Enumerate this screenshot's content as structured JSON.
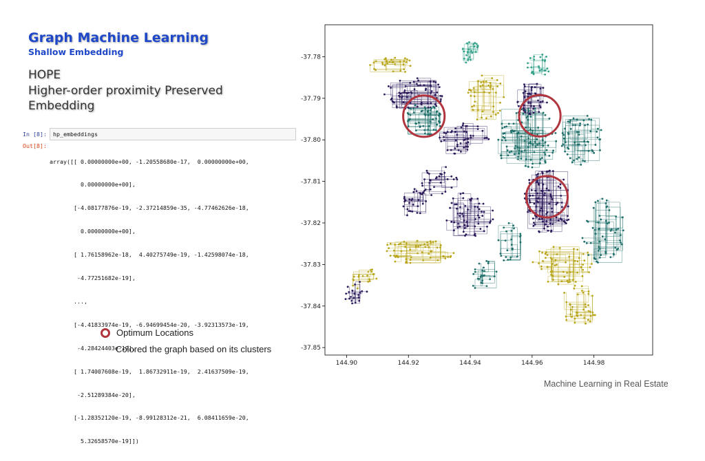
{
  "slide": {
    "title": "Graph Machine Learning",
    "subtitle": "Shallow Embedding",
    "heading_lines": [
      "HOPE",
      "Higher-order proximity Preserved",
      "Embedding"
    ],
    "footer": "Machine Learning in Real Estate"
  },
  "notebook": {
    "in_prompt": "In [8]:",
    "in_code": "hp_embeddings",
    "out_prompt": "Out[8]:",
    "out_lines": [
      "array([[ 0.00000000e+00, -1.20558680e-17,  0.00000000e+00,",
      "         0.00000000e+00],",
      "       [-4.08177876e-19, -2.37214859e-35, -4.77462626e-18,",
      "         0.00000000e+00],",
      "       [ 1.76158962e-18,  4.40275749e-19, -1.42598074e-18,",
      "        -4.77251682e-19],",
      "       ...,",
      "       [-4.41833974e-19, -6.94699454e-20, -3.92313573e-19,",
      "        -4.28424403e-19],",
      "       [ 1.74007608e-19,  1.86732911e-19,  2.41637509e-19,",
      "        -2.51289384e-20],",
      "       [-1.28352120e-19, -8.99128312e-21,  6.08411659e-20,",
      "         5.32658570e-19]])"
    ]
  },
  "legend": {
    "marker_color": "#b0353e",
    "label": "Optimum Locations",
    "caption": "Colored the graph based on its clusters"
  },
  "chart_data": {
    "type": "scatter",
    "title": "",
    "xlabel": "",
    "ylabel": "",
    "xlim": [
      144.893,
      144.999
    ],
    "ylim": [
      -37.8518,
      -37.7723
    ],
    "x_ticks": [
      144.9,
      144.92,
      144.94,
      144.96,
      144.98
    ],
    "x_tick_labels": [
      "144.90",
      "144.92",
      "144.94",
      "144.96",
      "144.98"
    ],
    "y_ticks": [
      -37.78,
      -37.79,
      -37.8,
      -37.81,
      -37.82,
      -37.83,
      -37.84,
      -37.85
    ],
    "y_tick_labels": [
      "-37.78",
      "-37.79",
      "-37.80",
      "-37.81",
      "-37.82",
      "-37.83",
      "-37.84",
      "-37.85"
    ],
    "grid": false,
    "cluster_colors": [
      "#2c1a5b",
      "#1f6f6a",
      "#b8a51a",
      "#35a38a"
    ],
    "highlight_color": "#b0353e",
    "highlights": [
      {
        "cx": 144.925,
        "cy": -37.7943,
        "r": 0.0067
      },
      {
        "cx": 144.9625,
        "cy": -37.7942,
        "r": 0.0067
      },
      {
        "cx": 144.9648,
        "cy": -37.8137,
        "r": 0.0067
      }
    ],
    "regions": [
      {
        "cluster": 0,
        "cx": 144.922,
        "cy": -37.789,
        "rx": 0.01,
        "ry": 0.004,
        "n": 70
      },
      {
        "cluster": 1,
        "cx": 144.925,
        "cy": -37.795,
        "rx": 0.006,
        "ry": 0.004,
        "n": 60
      },
      {
        "cluster": 0,
        "cx": 144.965,
        "cy": -37.815,
        "rx": 0.008,
        "ry": 0.008,
        "n": 110
      },
      {
        "cluster": 1,
        "cx": 144.958,
        "cy": -37.8,
        "rx": 0.01,
        "ry": 0.008,
        "n": 110
      },
      {
        "cluster": 1,
        "cx": 144.976,
        "cy": -37.8,
        "rx": 0.007,
        "ry": 0.006,
        "n": 60
      },
      {
        "cluster": 0,
        "cx": 144.96,
        "cy": -37.79,
        "rx": 0.005,
        "ry": 0.004,
        "n": 45
      },
      {
        "cluster": 2,
        "cx": 144.945,
        "cy": -37.79,
        "rx": 0.006,
        "ry": 0.006,
        "n": 45
      },
      {
        "cluster": 0,
        "cx": 144.938,
        "cy": -37.8,
        "rx": 0.008,
        "ry": 0.004,
        "n": 50
      },
      {
        "cluster": 0,
        "cx": 144.94,
        "cy": -37.818,
        "rx": 0.008,
        "ry": 0.006,
        "n": 60
      },
      {
        "cluster": 1,
        "cx": 144.983,
        "cy": -37.822,
        "rx": 0.007,
        "ry": 0.008,
        "n": 60
      },
      {
        "cluster": 2,
        "cx": 144.97,
        "cy": -37.83,
        "rx": 0.01,
        "ry": 0.005,
        "n": 60
      },
      {
        "cluster": 2,
        "cx": 144.975,
        "cy": -37.84,
        "rx": 0.006,
        "ry": 0.005,
        "n": 40
      },
      {
        "cluster": 1,
        "cx": 144.953,
        "cy": -37.825,
        "rx": 0.004,
        "ry": 0.005,
        "n": 25
      },
      {
        "cluster": 2,
        "cx": 144.923,
        "cy": -37.827,
        "rx": 0.012,
        "ry": 0.003,
        "n": 60
      },
      {
        "cluster": 2,
        "cx": 144.905,
        "cy": -37.833,
        "rx": 0.005,
        "ry": 0.003,
        "n": 20
      },
      {
        "cluster": 0,
        "cx": 144.903,
        "cy": -37.837,
        "rx": 0.004,
        "ry": 0.003,
        "n": 20
      },
      {
        "cluster": 0,
        "cx": 144.922,
        "cy": -37.815,
        "rx": 0.004,
        "ry": 0.004,
        "n": 30
      },
      {
        "cluster": 2,
        "cx": 144.915,
        "cy": -37.782,
        "rx": 0.008,
        "ry": 0.002,
        "n": 30
      },
      {
        "cluster": 3,
        "cx": 144.94,
        "cy": -37.779,
        "rx": 0.003,
        "ry": 0.003,
        "n": 25
      },
      {
        "cluster": 0,
        "cx": 144.93,
        "cy": -37.81,
        "rx": 0.006,
        "ry": 0.004,
        "n": 30
      },
      {
        "cluster": 1,
        "cx": 144.945,
        "cy": -37.833,
        "rx": 0.005,
        "ry": 0.004,
        "n": 25
      },
      {
        "cluster": 3,
        "cx": 144.962,
        "cy": -37.782,
        "rx": 0.004,
        "ry": 0.003,
        "n": 25
      }
    ]
  }
}
